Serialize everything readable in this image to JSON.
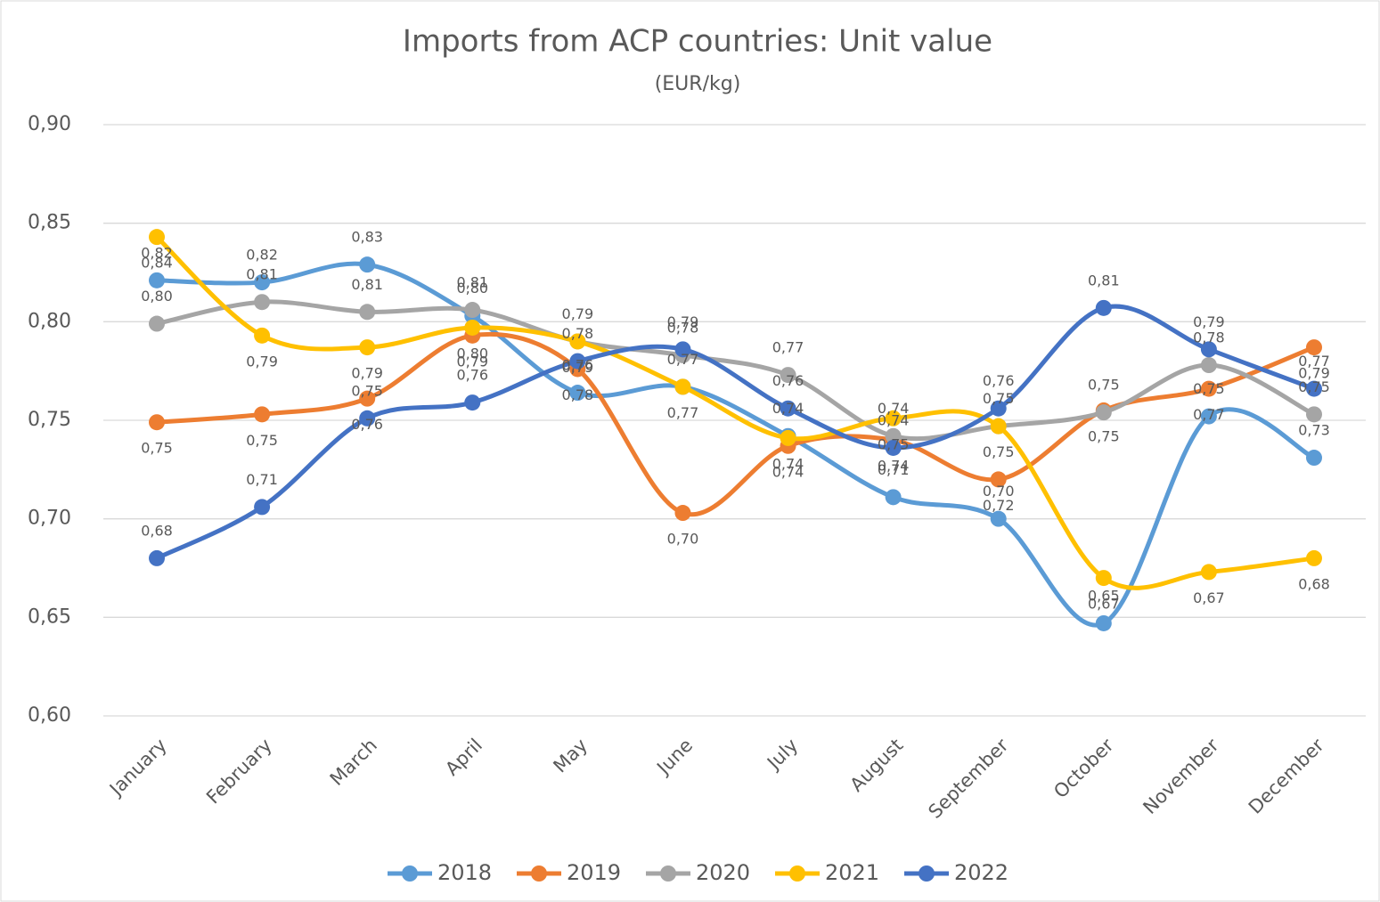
{
  "chart_data": {
    "type": "line",
    "title": "Imports from ACP countries: Unit value",
    "subtitle": "(EUR/kg)",
    "categories": [
      "January",
      "February",
      "March",
      "April",
      "May",
      "June",
      "July",
      "August",
      "September",
      "October",
      "November",
      "December"
    ],
    "ylim": [
      0.6,
      0.9
    ],
    "yticks": [
      {
        "value": 0.6,
        "label": "0,60"
      },
      {
        "value": 0.65,
        "label": "0,65"
      },
      {
        "value": 0.7,
        "label": "0,70"
      },
      {
        "value": 0.75,
        "label": "0,75"
      },
      {
        "value": 0.8,
        "label": "0,80"
      },
      {
        "value": 0.85,
        "label": "0,85"
      },
      {
        "value": 0.9,
        "label": "0,90"
      }
    ],
    "grid": true,
    "legend": "bottom",
    "smooth": true,
    "series": [
      {
        "name": "2018",
        "color": "#5b9bd5",
        "values": [
          0.821,
          0.82,
          0.829,
          0.803,
          0.764,
          0.767,
          0.742,
          0.711,
          0.7,
          0.647,
          0.752,
          0.731
        ],
        "value_labels": [
          "0,82",
          "0,82",
          "0,83",
          "0,80",
          "0,76",
          "0,77",
          "0,74",
          "0,71",
          "0,70",
          "0,65",
          "0,75",
          "0,73"
        ]
      },
      {
        "name": "2019",
        "color": "#ed7d31",
        "values": [
          0.749,
          0.753,
          0.761,
          0.793,
          0.776,
          0.703,
          0.737,
          0.74,
          0.72,
          0.755,
          0.766,
          0.787
        ],
        "value_labels": [
          "0,75",
          "0,75",
          "0,76",
          "0,79",
          "0,78",
          "0,70",
          "0,74",
          "0,74",
          "0,72",
          "0,75",
          "0,77",
          "0,79"
        ]
      },
      {
        "name": "2020",
        "color": "#a5a5a5",
        "values": [
          0.799,
          0.81,
          0.805,
          0.806,
          0.79,
          0.783,
          0.773,
          0.742,
          0.747,
          0.754,
          0.778,
          0.753
        ],
        "value_labels": [
          "0,80",
          "0,81",
          "0,81",
          "0,81",
          "0,79",
          "0,78",
          "0,77",
          "0,74",
          "0,75",
          "0,75",
          "0,78",
          "0,75"
        ]
      },
      {
        "name": "2021",
        "color": "#ffc000",
        "values": [
          0.843,
          0.793,
          0.787,
          0.797,
          0.79,
          0.767,
          0.741,
          0.751,
          0.747,
          0.67,
          0.673,
          0.68
        ],
        "value_labels": [
          "0,84",
          "0,79",
          "0,79",
          "0,80",
          "0,79",
          "0,77",
          "0,74",
          "0,75",
          "0,75",
          "0,67",
          "0,67",
          "0,68"
        ]
      },
      {
        "name": "2022",
        "color": "#4472c4",
        "values": [
          0.68,
          0.706,
          0.751,
          0.759,
          0.78,
          0.786,
          0.756,
          0.736,
          0.756,
          0.807,
          0.786,
          0.766
        ],
        "value_labels": [
          "0,68",
          "0,71",
          "0,75",
          "0,76",
          "0,78",
          "0,79",
          "0,76",
          "0,74",
          "0,76",
          "0,81",
          "0,79",
          "0,77"
        ]
      }
    ]
  }
}
